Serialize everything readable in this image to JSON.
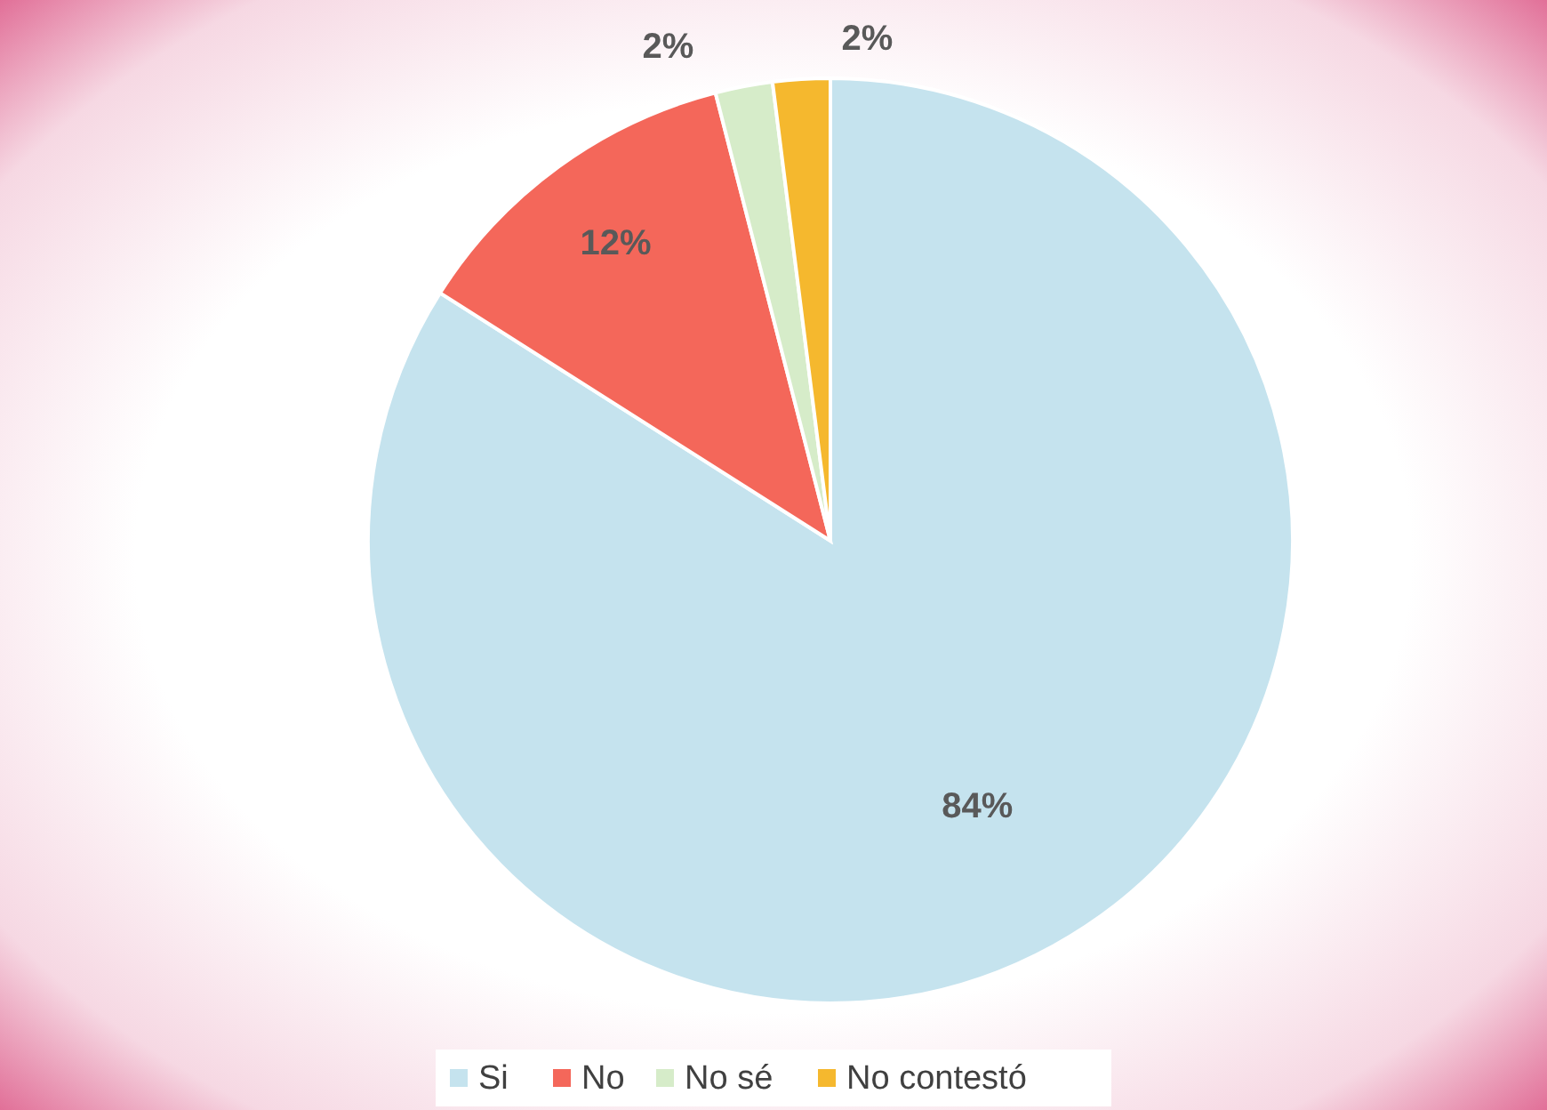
{
  "chart_data": {
    "type": "pie",
    "categories": [
      "Si",
      "No",
      "No sé",
      "No contestó"
    ],
    "values": [
      84,
      12,
      2,
      2
    ],
    "colors": [
      "#c5e3ee",
      "#f4675a",
      "#d6ecc9",
      "#f5b82e"
    ],
    "value_labels": [
      "84%",
      "12%",
      "2%",
      "2%"
    ],
    "legend": "bottom"
  }
}
